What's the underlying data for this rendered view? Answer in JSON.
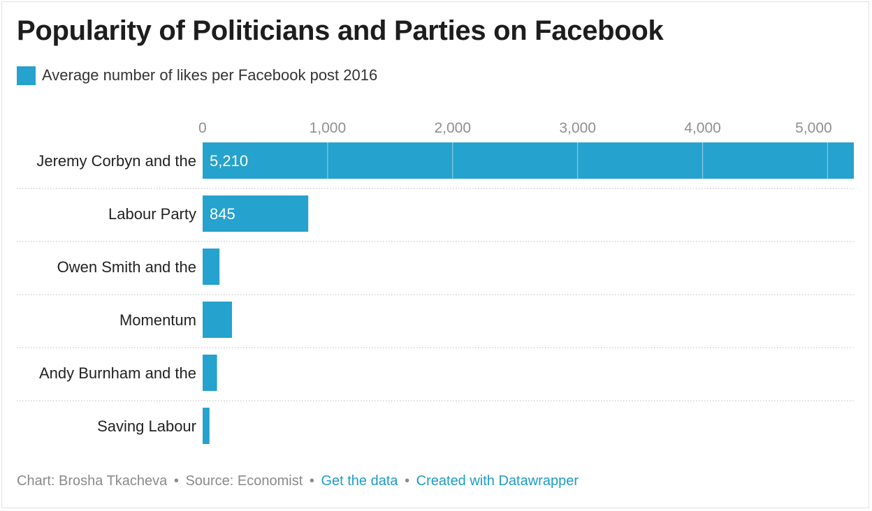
{
  "chart_data": {
    "type": "bar",
    "orientation": "horizontal",
    "title": "Popularity of Politicians and Parties on Facebook",
    "legend": "Average number of likes per Facebook post 2016",
    "legend_placement": "top-left",
    "categories": [
      "Jeremy Corbyn and the",
      "Labour Party",
      "Owen Smith and the",
      "Momentum",
      "Andy Burnham and the",
      "Saving Labour"
    ],
    "values": [
      5210,
      845,
      135,
      235,
      115,
      55
    ],
    "value_labels": [
      "5,210",
      "845",
      "",
      "",
      "",
      ""
    ],
    "x_ticks": [
      0,
      1000,
      2000,
      3000,
      4000,
      5000
    ],
    "x_tick_labels": [
      "0",
      "1,000",
      "2,000",
      "3,000",
      "4,000",
      "5,000"
    ],
    "xlim": [
      0,
      5210
    ],
    "grid": true,
    "axis_position": "top",
    "color": "#25a2cd"
  },
  "footer": {
    "chart_credit": "Chart: Brosha Tkacheva",
    "source": "Source: Economist",
    "separator": "•",
    "get_data": "Get the data",
    "created_with": "Created with Datawrapper"
  }
}
